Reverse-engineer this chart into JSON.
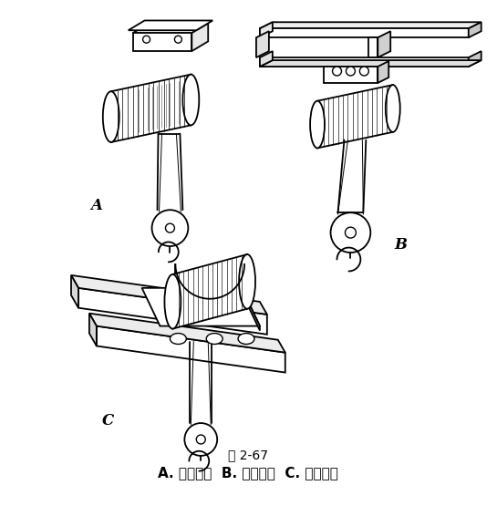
{
  "title": "图 2-67",
  "caption_A": "A. 固定式；",
  "caption_B": "B. 单轨式；",
  "caption_C": "C. 双轨梁式",
  "bg_color": "#ffffff",
  "fig_width": 5.45,
  "fig_height": 5.55,
  "dpi": 100,
  "label_A": "A",
  "label_B": "B",
  "label_C": "C",
  "title_fontsize": 10,
  "caption_fontsize": 11,
  "label_fontsize": 11,
  "lw_main": 1.3,
  "lw_thin": 0.7
}
